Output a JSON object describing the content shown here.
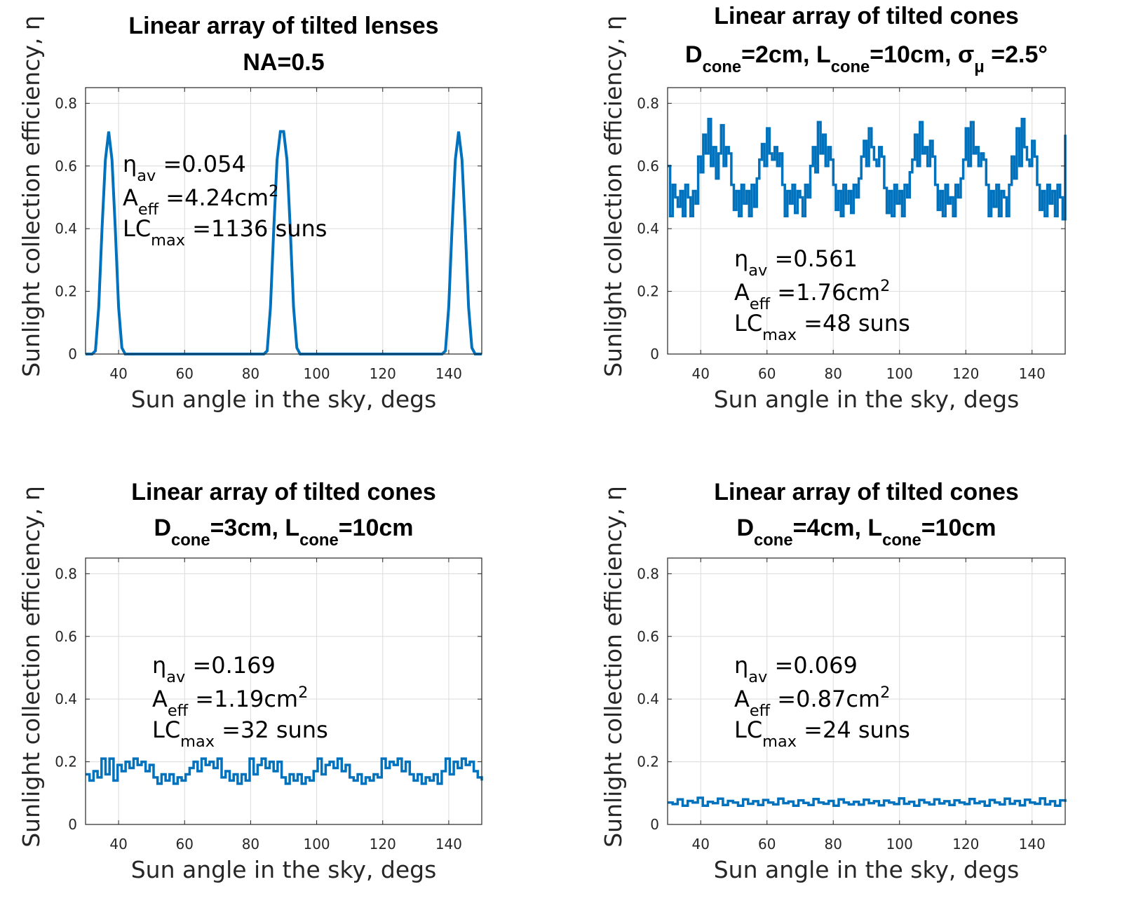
{
  "figure": {
    "xlabel": "Sun angle in the sky, degs",
    "ylabel": "Sunlight collection efficiency, η",
    "series_color": "#0072BD",
    "grid_color": "#dcdcdc"
  },
  "chart_data": [
    {
      "type": "line",
      "title": [
        "Linear array of tilted lenses",
        "NA=0.5"
      ],
      "xlabel": "Sun angle in the sky, degs",
      "ylabel": "Sunlight collection efficiency, η",
      "xlim": [
        30,
        150
      ],
      "ylim": [
        0,
        0.85
      ],
      "xticks": [
        40,
        60,
        80,
        100,
        120,
        140
      ],
      "yticks": [
        0,
        0.2,
        0.4,
        0.6,
        0.8
      ],
      "grid": true,
      "annotation": {
        "eta_av": "0.054",
        "A_eff": "4.24",
        "LC_max": "1136"
      },
      "series": [
        {
          "x": [
            30,
            32,
            33,
            34,
            35,
            36,
            37,
            38,
            39,
            40,
            41,
            42,
            84,
            85,
            86,
            87,
            88,
            89,
            90,
            91,
            92,
            93,
            94,
            95,
            96,
            138,
            139,
            140,
            141,
            142,
            143,
            144,
            145,
            146,
            147,
            148,
            150
          ],
          "values": [
            0,
            0,
            0.01,
            0.15,
            0.4,
            0.62,
            0.71,
            0.62,
            0.4,
            0.15,
            0.02,
            0,
            0,
            0.01,
            0.15,
            0.4,
            0.62,
            0.71,
            0.71,
            0.62,
            0.4,
            0.15,
            0.02,
            0,
            0,
            0,
            0.01,
            0.15,
            0.4,
            0.62,
            0.71,
            0.62,
            0.4,
            0.15,
            0.02,
            0,
            0
          ]
        }
      ]
    },
    {
      "type": "line",
      "title": [
        "Linear array of tilted cones",
        "D_cone=2cm, L_cone=10cm, σ_μ =2.5°"
      ],
      "xlabel": "Sun angle in the sky, degs",
      "ylabel": "Sunlight collection efficiency, η",
      "xlim": [
        30,
        150
      ],
      "ylim": [
        0,
        0.85
      ],
      "xticks": [
        40,
        60,
        80,
        100,
        120,
        140
      ],
      "yticks": [
        0,
        0.2,
        0.4,
        0.6,
        0.8
      ],
      "grid": true,
      "annotation": {
        "eta_av": "0.561",
        "A_eff": "1.76",
        "LC_max": "48"
      },
      "series": [
        {
          "values": [
            0.6,
            0.44,
            0.54,
            0.5,
            0.47,
            0.52,
            0.44,
            0.54,
            0.5,
            0.44,
            0.52,
            0.48,
            0.63,
            0.58,
            0.7,
            0.64,
            0.75,
            0.6,
            0.66,
            0.56,
            0.64,
            0.73,
            0.6,
            0.66,
            0.64,
            0.54,
            0.46,
            0.52,
            0.44,
            0.54,
            0.48,
            0.52,
            0.44,
            0.54,
            0.47,
            0.56,
            0.62,
            0.67,
            0.6,
            0.72,
            0.64,
            0.62,
            0.66,
            0.6,
            0.64,
            0.54,
            0.44,
            0.52,
            0.48,
            0.54,
            0.45,
            0.52,
            0.5,
            0.44,
            0.54,
            0.5,
            0.6,
            0.66,
            0.58,
            0.74,
            0.64,
            0.7,
            0.6,
            0.66,
            0.62,
            0.54,
            0.46,
            0.52,
            0.44,
            0.54,
            0.48,
            0.52,
            0.45,
            0.54,
            0.5,
            0.56,
            0.63,
            0.68,
            0.6,
            0.72,
            0.66,
            0.62,
            0.6,
            0.66,
            0.63,
            0.53,
            0.45,
            0.52,
            0.44,
            0.54,
            0.48,
            0.52,
            0.44,
            0.54,
            0.5,
            0.58,
            0.62,
            0.7,
            0.6,
            0.74,
            0.64,
            0.66,
            0.6,
            0.68,
            0.63,
            0.54,
            0.46,
            0.52,
            0.44,
            0.54,
            0.48,
            0.5,
            0.44,
            0.54,
            0.5,
            0.56,
            0.62,
            0.72,
            0.6,
            0.74,
            0.64,
            0.66,
            0.6,
            0.64,
            0.62,
            0.54,
            0.44,
            0.52,
            0.47,
            0.54,
            0.44,
            0.52,
            0.5,
            0.44,
            0.54,
            0.63,
            0.56,
            0.72,
            0.6,
            0.75,
            0.66,
            0.62,
            0.6,
            0.68,
            0.63,
            0.54,
            0.46,
            0.52,
            0.44,
            0.54,
            0.48,
            0.52,
            0.44,
            0.54,
            0.5,
            0.43,
            0.7
          ]
        }
      ]
    },
    {
      "type": "line",
      "title": [
        "Linear array of tilted cones",
        "D_cone=3cm, L_cone=10cm"
      ],
      "xlabel": "Sun angle in the sky, degs",
      "ylabel": "Sunlight collection efficiency, η",
      "xlim": [
        30,
        150
      ],
      "ylim": [
        0,
        0.85
      ],
      "xticks": [
        40,
        60,
        80,
        100,
        120,
        140
      ],
      "yticks": [
        0,
        0.2,
        0.4,
        0.6,
        0.8
      ],
      "grid": true,
      "annotation": {
        "eta_av": "0.169",
        "A_eff": "1.19",
        "LC_max": "32"
      },
      "series": [
        {
          "values": [
            0.16,
            0.14,
            0.17,
            0.15,
            0.21,
            0.16,
            0.21,
            0.14,
            0.19,
            0.17,
            0.2,
            0.18,
            0.21,
            0.19,
            0.2,
            0.17,
            0.19,
            0.15,
            0.13,
            0.16,
            0.14,
            0.16,
            0.13,
            0.15,
            0.14,
            0.16,
            0.18,
            0.2,
            0.17,
            0.21,
            0.19,
            0.2,
            0.18,
            0.21,
            0.15,
            0.17,
            0.14,
            0.16,
            0.13,
            0.16,
            0.14,
            0.21,
            0.16,
            0.19,
            0.21,
            0.18,
            0.2,
            0.17,
            0.2,
            0.15,
            0.13,
            0.16,
            0.14,
            0.16,
            0.13,
            0.15,
            0.14,
            0.17,
            0.21,
            0.16,
            0.19,
            0.2,
            0.18,
            0.21,
            0.17,
            0.19,
            0.15,
            0.14,
            0.16,
            0.13,
            0.15,
            0.14,
            0.16,
            0.15,
            0.21,
            0.18,
            0.2,
            0.19,
            0.21,
            0.17,
            0.2,
            0.16,
            0.14,
            0.16,
            0.13,
            0.15,
            0.14,
            0.16,
            0.13,
            0.17,
            0.21,
            0.16,
            0.2,
            0.18,
            0.21,
            0.19,
            0.2,
            0.17,
            0.15,
            0.14
          ]
        }
      ]
    },
    {
      "type": "line",
      "title": [
        "Linear array of tilted cones",
        "D_cone=4cm, L_cone=10cm"
      ],
      "xlabel": "Sun angle in the sky, degs",
      "ylabel": "Sunlight collection efficiency, η",
      "xlim": [
        30,
        150
      ],
      "ylim": [
        0,
        0.85
      ],
      "xticks": [
        40,
        60,
        80,
        100,
        120,
        140
      ],
      "yticks": [
        0,
        0.2,
        0.4,
        0.6,
        0.8
      ],
      "grid": true,
      "annotation": {
        "eta_av": "0.069",
        "A_eff": "0.87",
        "LC_max": "24"
      },
      "series": [
        {
          "values": [
            0.07,
            0.065,
            0.08,
            0.06,
            0.075,
            0.07,
            0.085,
            0.06,
            0.072,
            0.068,
            0.082,
            0.062,
            0.075,
            0.07,
            0.06,
            0.08,
            0.066,
            0.074,
            0.062,
            0.078,
            0.07,
            0.064,
            0.082,
            0.068,
            0.073,
            0.06,
            0.077,
            0.069,
            0.062,
            0.081,
            0.07,
            0.066,
            0.075,
            0.06,
            0.08,
            0.07,
            0.064,
            0.072,
            0.063,
            0.079,
            0.068,
            0.074,
            0.061,
            0.076,
            0.07,
            0.065,
            0.083,
            0.066,
            0.072,
            0.06,
            0.078,
            0.07,
            0.064,
            0.08,
            0.067,
            0.074,
            0.062,
            0.077,
            0.07,
            0.065,
            0.081,
            0.068,
            0.073,
            0.06,
            0.078,
            0.07,
            0.064,
            0.082,
            0.066,
            0.075,
            0.061,
            0.079,
            0.07,
            0.066,
            0.083,
            0.064,
            0.074,
            0.06,
            0.077,
            0.072
          ]
        }
      ]
    }
  ]
}
